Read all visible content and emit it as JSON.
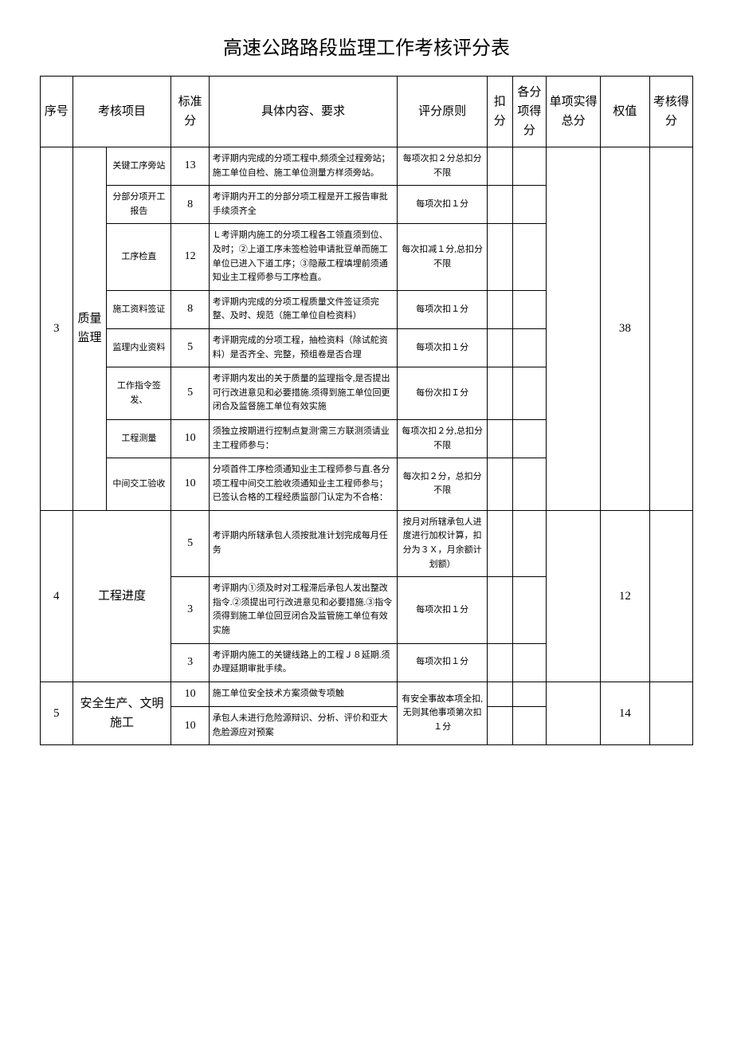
{
  "title": "高速公路路段监理工作考核评分表",
  "headers": {
    "seq": "序号",
    "category": "考核项目",
    "std_score": "标准分",
    "content": "具体内容、要求",
    "rule": "评分原则",
    "deduct": "扣分",
    "sub_score": "各分项得分",
    "total": "单项实得总分",
    "weight": "权值",
    "final": "考核得分"
  },
  "sections": [
    {
      "seq": "3",
      "category": "质量监理",
      "weight": "38",
      "rows": [
        {
          "sub": "关键工序旁站",
          "score": "13",
          "content": "考评期内完成的分项工程中,频须全过程旁站；施工单位自检、施工单位测量方样须旁站。",
          "rule": "每项次扣２分总扣分不限"
        },
        {
          "sub": "分部分项开工报告",
          "score": "8",
          "content": "考评期内开工的分部分项工程是开工报告审批手续须齐全",
          "rule": "每项次扣１分"
        },
        {
          "sub": "工序检直",
          "score": "12",
          "content": "Ｌ考评期内施工的分项工程各工领直须到位、及时；②上道工序未签检验申请批豆单而施工单位已进入下道工序；③隐蔽工程填埋前须通知业主工程师参与工序检直。",
          "rule": "每次扣减１分,总扣分不限"
        },
        {
          "sub": "施工资料签证",
          "score": "8",
          "content": "考评期内完成的分项工程质量文件签证须完整、及时、规范（施工单位自检资料）",
          "rule": "每项次扣１分"
        },
        {
          "sub": "监理内业资料",
          "score": "5",
          "content": "考评期完成的分项工程，抽检资料（除试舵资料）是否齐全、完整，预组卷是否合理",
          "rule": "每项次扣１分"
        },
        {
          "sub": "工作指令签发、",
          "score": "5",
          "content": "考评期内发出的关于质量的监理指令,是否提出可行改进意见和必要措施.须得到施工单位回更闭合及监督施工单位有效实施",
          "rule": "每份次扣Ｉ分"
        },
        {
          "sub": "工程测量",
          "score": "10",
          "content": "须独立按期进行控制点复测'需三方联测须请业主工程师参与：",
          "rule": "每项次扣２分,总扣分不限"
        },
        {
          "sub": "中间交工验收",
          "score": "10",
          "content": "分项首件工序检须通知业主工程师参与直.各分项工程中间交工脸收须通知业主工程师参与；已签认合格的工程经质监部门认定为不合格：",
          "rule": "每次扣２分，总扣分不限"
        }
      ]
    },
    {
      "seq": "4",
      "category": "工程进度",
      "weight": "12",
      "rows": [
        {
          "sub": "",
          "score": "5",
          "content": "考评期内所辖承包人须按批准计划完成每月任务",
          "rule": "按月对所辖承包人进度进行加权计算，扣分为３Ｘ，月余额计划额）"
        },
        {
          "sub": "",
          "score": "3",
          "content": "考评期内①须及时对工程滞后承包人发出整改指令.②须提出可行改进意见和必要措施.③指令须得到施工单位回豆闭合及监管施工单位有效实施",
          "rule": "每项次扣１分"
        },
        {
          "sub": "",
          "score": "3",
          "content": "考评期内施工的关键线路上的工程Ｊ８延期.须办理延期审批手续。",
          "rule": "每项次扣１分"
        }
      ]
    },
    {
      "seq": "5",
      "category": "安全生产、文明施工",
      "weight": "14",
      "rows": [
        {
          "sub": "",
          "score": "10",
          "content": "施工单位安全技术方案须做专项触",
          "rule": "有安全事故本项全扣,无则其他事项第次扣１分",
          "rule_rowspan": 2
        },
        {
          "sub": "",
          "score": "10",
          "content": "承包人未进行危险源辩识、分析、评价和亚大危脸源应对预案",
          "rule": ""
        }
      ]
    }
  ]
}
